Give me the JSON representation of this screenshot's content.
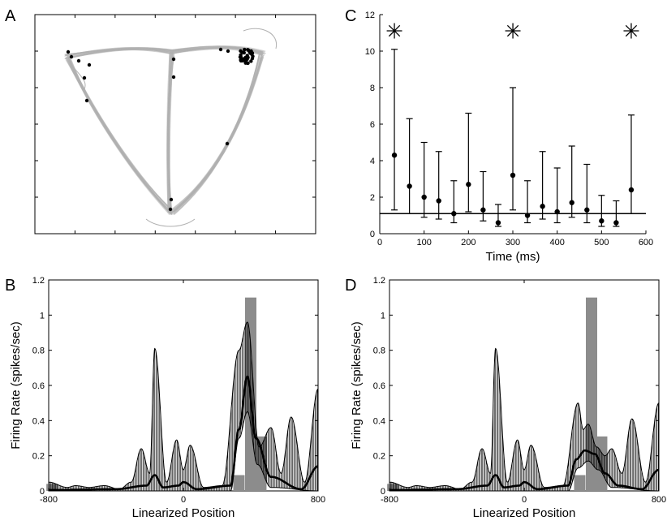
{
  "panels": {
    "A": {
      "letter": "A"
    },
    "B": {
      "letter": "B"
    },
    "C": {
      "letter": "C"
    },
    "D": {
      "letter": "D"
    }
  },
  "colors": {
    "track": "#b0b0b0",
    "histogram": "#8c8c8c",
    "curve": "#000000"
  },
  "chart_data": [
    {
      "id": "A",
      "type": "scatter",
      "description_kind": "trajectory-with-spikes",
      "grid": false,
      "tick_labels_shown": false
    },
    {
      "id": "B",
      "type": "area",
      "xlabel": "Linearized Position",
      "ylabel": "Firing Rate (spikes/sec)",
      "xlim": [
        -800,
        800
      ],
      "ylim": [
        0,
        1.2
      ],
      "xticks": [
        -800,
        0,
        800
      ],
      "xtick_labels": [
        "-800",
        "0",
        "800"
      ],
      "yticks": [
        0,
        0.2,
        0.4,
        0.6,
        0.8,
        1,
        1.2
      ],
      "ytick_labels": [
        "0",
        "0.2",
        "0.4",
        "0.6",
        "0.8",
        "1",
        "1.2"
      ],
      "histogram": {
        "x": [
          -780,
          330,
          400,
          460
        ],
        "values": [
          0.04,
          0.09,
          1.1,
          0.31
        ]
      },
      "upper_envelope_peaks": [
        {
          "x": -800,
          "y": 0.05
        },
        {
          "x": -690,
          "y": 0.02
        },
        {
          "x": -640,
          "y": 0.03
        },
        {
          "x": -560,
          "y": 0.02
        },
        {
          "x": -470,
          "y": 0.03
        },
        {
          "x": -380,
          "y": 0.01
        },
        {
          "x": -310,
          "y": 0.05
        },
        {
          "x": -250,
          "y": 0.24
        },
        {
          "x": -200,
          "y": 0.1
        },
        {
          "x": -170,
          "y": 0.81
        },
        {
          "x": -100,
          "y": 0.05
        },
        {
          "x": -40,
          "y": 0.29
        },
        {
          "x": 0,
          "y": 0.12
        },
        {
          "x": 40,
          "y": 0.26
        },
        {
          "x": 120,
          "y": 0.02
        },
        {
          "x": 230,
          "y": 0.03
        },
        {
          "x": 330,
          "y": 0.8
        },
        {
          "x": 380,
          "y": 0.96
        },
        {
          "x": 450,
          "y": 0.25
        },
        {
          "x": 520,
          "y": 0.36
        },
        {
          "x": 580,
          "y": 0.1
        },
        {
          "x": 640,
          "y": 0.42
        },
        {
          "x": 720,
          "y": 0.05
        },
        {
          "x": 800,
          "y": 0.58
        }
      ],
      "mean_curve": [
        {
          "x": -800,
          "y": 0.005
        },
        {
          "x": -400,
          "y": 0.01
        },
        {
          "x": -220,
          "y": 0.03
        },
        {
          "x": -170,
          "y": 0.09
        },
        {
          "x": -120,
          "y": 0.02
        },
        {
          "x": -30,
          "y": 0.03
        },
        {
          "x": 0,
          "y": 0.05
        },
        {
          "x": 80,
          "y": 0.01
        },
        {
          "x": 280,
          "y": 0.03
        },
        {
          "x": 330,
          "y": 0.35
        },
        {
          "x": 380,
          "y": 0.65
        },
        {
          "x": 430,
          "y": 0.3
        },
        {
          "x": 520,
          "y": 0.08
        },
        {
          "x": 700,
          "y": 0.01
        },
        {
          "x": 800,
          "y": 0.14
        }
      ],
      "lower_envelope": [
        {
          "x": -800,
          "y": 0.0
        },
        {
          "x": 280,
          "y": 0.0
        },
        {
          "x": 330,
          "y": 0.3
        },
        {
          "x": 380,
          "y": 0.45
        },
        {
          "x": 440,
          "y": 0.15
        },
        {
          "x": 520,
          "y": 0.02
        },
        {
          "x": 800,
          "y": 0.0
        }
      ]
    },
    {
      "id": "C",
      "type": "scatter",
      "xlabel": "Time (ms)",
      "ylabel": "",
      "xlim": [
        0,
        600
      ],
      "ylim": [
        0,
        12
      ],
      "xticks": [
        0,
        100,
        200,
        300,
        400,
        500,
        600
      ],
      "xtick_labels": [
        "0",
        "100",
        "200",
        "300",
        "400",
        "500",
        "600"
      ],
      "yticks": [
        0,
        2,
        4,
        6,
        8,
        10,
        12
      ],
      "ytick_labels": [
        "0",
        "2",
        "4",
        "6",
        "8",
        "10",
        "12"
      ],
      "reference_line": 1.1,
      "points": [
        {
          "x": 33,
          "y": 4.3,
          "lo": 1.3,
          "hi": 10.1
        },
        {
          "x": 67,
          "y": 2.6,
          "lo": 1.1,
          "hi": 6.3
        },
        {
          "x": 100,
          "y": 2.0,
          "lo": 0.9,
          "hi": 5.0
        },
        {
          "x": 133,
          "y": 1.8,
          "lo": 0.8,
          "hi": 4.5
        },
        {
          "x": 167,
          "y": 1.1,
          "lo": 0.6,
          "hi": 2.9
        },
        {
          "x": 200,
          "y": 2.7,
          "lo": 1.2,
          "hi": 6.6
        },
        {
          "x": 233,
          "y": 1.3,
          "lo": 0.7,
          "hi": 3.4
        },
        {
          "x": 267,
          "y": 0.6,
          "lo": 0.4,
          "hi": 1.6
        },
        {
          "x": 300,
          "y": 3.2,
          "lo": 1.3,
          "hi": 8.0
        },
        {
          "x": 333,
          "y": 1.0,
          "lo": 0.6,
          "hi": 2.9
        },
        {
          "x": 367,
          "y": 1.5,
          "lo": 0.8,
          "hi": 4.5
        },
        {
          "x": 400,
          "y": 1.2,
          "lo": 0.6,
          "hi": 3.6
        },
        {
          "x": 433,
          "y": 1.7,
          "lo": 0.9,
          "hi": 4.8
        },
        {
          "x": 467,
          "y": 1.3,
          "lo": 0.6,
          "hi": 3.8
        },
        {
          "x": 500,
          "y": 0.7,
          "lo": 0.4,
          "hi": 2.1
        },
        {
          "x": 533,
          "y": 0.6,
          "lo": 0.4,
          "hi": 1.8
        },
        {
          "x": 567,
          "y": 2.4,
          "lo": 1.1,
          "hi": 6.5
        }
      ],
      "significance_markers": [
        {
          "x": 33,
          "y": 11.1,
          "label": "✳"
        },
        {
          "x": 300,
          "y": 11.1,
          "label": "✳"
        },
        {
          "x": 567,
          "y": 11.1,
          "label": "✳"
        }
      ]
    },
    {
      "id": "D",
      "type": "area",
      "xlabel": "Linearized Position",
      "ylabel": "Firing Rate (spikes/sec)",
      "xlim": [
        -800,
        800
      ],
      "ylim": [
        0,
        1.2
      ],
      "xticks": [
        -800,
        0,
        800
      ],
      "xtick_labels": [
        "-800",
        "0",
        "800"
      ],
      "yticks": [
        0,
        0.2,
        0.4,
        0.6,
        0.8,
        1,
        1.2
      ],
      "ytick_labels": [
        "0",
        "0.2",
        "0.4",
        "0.6",
        "0.8",
        "1",
        "1.2"
      ],
      "histogram": {
        "x": [
          -780,
          330,
          400,
          460
        ],
        "values": [
          0.04,
          0.09,
          1.1,
          0.31
        ]
      },
      "upper_envelope_peaks": [
        {
          "x": -800,
          "y": 0.05
        },
        {
          "x": -690,
          "y": 0.02
        },
        {
          "x": -640,
          "y": 0.03
        },
        {
          "x": -560,
          "y": 0.02
        },
        {
          "x": -470,
          "y": 0.03
        },
        {
          "x": -380,
          "y": 0.01
        },
        {
          "x": -310,
          "y": 0.05
        },
        {
          "x": -250,
          "y": 0.24
        },
        {
          "x": -200,
          "y": 0.1
        },
        {
          "x": -170,
          "y": 0.81
        },
        {
          "x": -100,
          "y": 0.05
        },
        {
          "x": -40,
          "y": 0.29
        },
        {
          "x": 0,
          "y": 0.12
        },
        {
          "x": 40,
          "y": 0.26
        },
        {
          "x": 120,
          "y": 0.02
        },
        {
          "x": 230,
          "y": 0.03
        },
        {
          "x": 320,
          "y": 0.5
        },
        {
          "x": 350,
          "y": 0.35
        },
        {
          "x": 380,
          "y": 0.38
        },
        {
          "x": 430,
          "y": 0.25
        },
        {
          "x": 480,
          "y": 0.2
        },
        {
          "x": 520,
          "y": 0.24
        },
        {
          "x": 580,
          "y": 0.1
        },
        {
          "x": 640,
          "y": 0.41
        },
        {
          "x": 720,
          "y": 0.05
        },
        {
          "x": 800,
          "y": 0.5
        }
      ],
      "mean_curve": [
        {
          "x": -800,
          "y": 0.005
        },
        {
          "x": -400,
          "y": 0.01
        },
        {
          "x": -220,
          "y": 0.03
        },
        {
          "x": -170,
          "y": 0.09
        },
        {
          "x": -120,
          "y": 0.02
        },
        {
          "x": -30,
          "y": 0.03
        },
        {
          "x": 0,
          "y": 0.05
        },
        {
          "x": 80,
          "y": 0.01
        },
        {
          "x": 260,
          "y": 0.03
        },
        {
          "x": 310,
          "y": 0.18
        },
        {
          "x": 360,
          "y": 0.23
        },
        {
          "x": 420,
          "y": 0.21
        },
        {
          "x": 480,
          "y": 0.1
        },
        {
          "x": 560,
          "y": 0.03
        },
        {
          "x": 700,
          "y": 0.01
        },
        {
          "x": 800,
          "y": 0.12
        }
      ],
      "lower_envelope": [
        {
          "x": -800,
          "y": 0.0
        },
        {
          "x": 260,
          "y": 0.0
        },
        {
          "x": 320,
          "y": 0.13
        },
        {
          "x": 380,
          "y": 0.17
        },
        {
          "x": 440,
          "y": 0.12
        },
        {
          "x": 520,
          "y": 0.02
        },
        {
          "x": 800,
          "y": 0.0
        }
      ]
    }
  ]
}
